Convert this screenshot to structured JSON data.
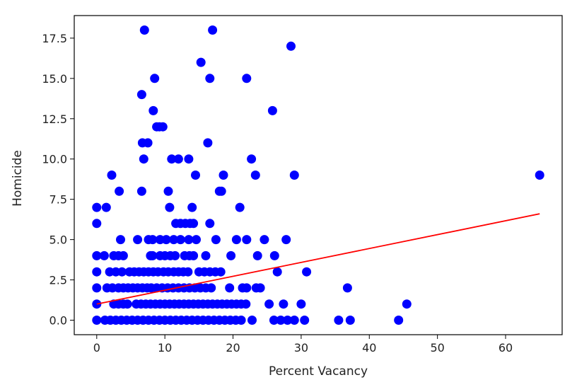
{
  "chart_data": {
    "type": "scatter",
    "xlabel": "Percent Vacancy",
    "ylabel": "Homicide",
    "xlim": [
      -3.3,
      68.3
    ],
    "ylim": [
      -0.9,
      18.9
    ],
    "xticks": [
      0,
      10,
      20,
      30,
      40,
      50,
      60
    ],
    "xtick_labels": [
      "0",
      "10",
      "20",
      "30",
      "40",
      "50",
      "60"
    ],
    "yticks": [
      0.0,
      2.5,
      5.0,
      7.5,
      10.0,
      12.5,
      15.0,
      17.5
    ],
    "ytick_labels": [
      "0.0",
      "2.5",
      "5.0",
      "7.5",
      "10.0",
      "12.5",
      "15.0",
      "17.5"
    ],
    "grid": false,
    "point_color": "#0000ff",
    "line_color": "#ff0000",
    "points": [
      [
        7,
        18
      ],
      [
        17,
        18
      ],
      [
        28.5,
        17
      ],
      [
        15.3,
        16
      ],
      [
        8.5,
        15
      ],
      [
        16.6,
        15
      ],
      [
        22,
        15
      ],
      [
        6.6,
        14
      ],
      [
        8.3,
        13
      ],
      [
        25.8,
        13
      ],
      [
        8.8,
        12
      ],
      [
        9.2,
        12
      ],
      [
        9.7,
        12
      ],
      [
        6.7,
        11
      ],
      [
        7.5,
        11
      ],
      [
        16.3,
        11
      ],
      [
        6.9,
        10
      ],
      [
        11,
        10
      ],
      [
        12,
        10
      ],
      [
        13.5,
        10
      ],
      [
        22.7,
        10
      ],
      [
        2.2,
        9
      ],
      [
        14.5,
        9
      ],
      [
        18.6,
        9
      ],
      [
        23.3,
        9
      ],
      [
        29,
        9
      ],
      [
        65,
        9
      ],
      [
        3.3,
        8
      ],
      [
        6.6,
        8
      ],
      [
        10.5,
        8
      ],
      [
        18,
        8
      ],
      [
        18.3,
        8
      ],
      [
        0,
        7
      ],
      [
        1.4,
        7
      ],
      [
        10.7,
        7
      ],
      [
        14,
        7
      ],
      [
        21,
        7
      ],
      [
        0,
        6
      ],
      [
        11.6,
        6
      ],
      [
        12.3,
        6
      ],
      [
        13,
        6
      ],
      [
        13.7,
        6
      ],
      [
        14.2,
        6
      ],
      [
        16.6,
        6
      ],
      [
        3.5,
        5
      ],
      [
        6,
        5
      ],
      [
        7.6,
        5
      ],
      [
        8.2,
        5
      ],
      [
        9.3,
        5
      ],
      [
        10.2,
        5
      ],
      [
        11.3,
        5
      ],
      [
        12.3,
        5
      ],
      [
        13.5,
        5
      ],
      [
        14.6,
        5
      ],
      [
        17.5,
        5
      ],
      [
        20.5,
        5
      ],
      [
        22,
        5
      ],
      [
        24.6,
        5
      ],
      [
        27.8,
        5
      ],
      [
        0,
        4
      ],
      [
        1.1,
        4
      ],
      [
        2.5,
        4
      ],
      [
        3.2,
        4
      ],
      [
        3.9,
        4
      ],
      [
        7.9,
        4
      ],
      [
        8.2,
        4
      ],
      [
        9.3,
        4
      ],
      [
        10,
        4
      ],
      [
        10.8,
        4
      ],
      [
        11.5,
        4
      ],
      [
        12.9,
        4
      ],
      [
        13.6,
        4
      ],
      [
        14.2,
        4
      ],
      [
        16,
        4
      ],
      [
        19.7,
        4
      ],
      [
        23.6,
        4
      ],
      [
        26.1,
        4
      ],
      [
        0,
        3
      ],
      [
        1.9,
        3
      ],
      [
        2.8,
        3
      ],
      [
        3.7,
        3
      ],
      [
        4.8,
        3
      ],
      [
        5.5,
        3
      ],
      [
        6.2,
        3
      ],
      [
        6.9,
        3
      ],
      [
        7.6,
        3
      ],
      [
        8.3,
        3
      ],
      [
        9,
        3
      ],
      [
        9.8,
        3
      ],
      [
        10.5,
        3
      ],
      [
        11.3,
        3
      ],
      [
        12,
        3
      ],
      [
        12.7,
        3
      ],
      [
        13.4,
        3
      ],
      [
        15,
        3
      ],
      [
        15.8,
        3
      ],
      [
        16.6,
        3
      ],
      [
        17.4,
        3
      ],
      [
        18.2,
        3
      ],
      [
        26.5,
        3
      ],
      [
        30.8,
        3
      ],
      [
        0,
        2
      ],
      [
        1.5,
        2
      ],
      [
        2.3,
        2
      ],
      [
        3.2,
        2
      ],
      [
        3.9,
        2
      ],
      [
        4.6,
        2
      ],
      [
        5.3,
        2
      ],
      [
        6,
        2
      ],
      [
        6.7,
        2
      ],
      [
        7.4,
        2
      ],
      [
        8,
        2
      ],
      [
        8.8,
        2
      ],
      [
        9.6,
        2
      ],
      [
        10.4,
        2
      ],
      [
        11.2,
        2
      ],
      [
        12,
        2
      ],
      [
        12.8,
        2
      ],
      [
        13.6,
        2
      ],
      [
        14.4,
        2
      ],
      [
        15.2,
        2
      ],
      [
        16,
        2
      ],
      [
        16.8,
        2
      ],
      [
        19.5,
        2
      ],
      [
        21.4,
        2
      ],
      [
        22,
        2
      ],
      [
        23.4,
        2
      ],
      [
        24,
        2
      ],
      [
        36.8,
        2
      ],
      [
        0,
        1
      ],
      [
        2.5,
        1
      ],
      [
        3.2,
        1
      ],
      [
        3.9,
        1
      ],
      [
        4.5,
        1
      ],
      [
        5.8,
        1
      ],
      [
        6.5,
        1
      ],
      [
        7.2,
        1
      ],
      [
        7.9,
        1
      ],
      [
        8.6,
        1
      ],
      [
        9.3,
        1
      ],
      [
        10,
        1
      ],
      [
        10.7,
        1
      ],
      [
        11.4,
        1
      ],
      [
        12.1,
        1
      ],
      [
        12.8,
        1
      ],
      [
        13.5,
        1
      ],
      [
        14.2,
        1
      ],
      [
        14.9,
        1
      ],
      [
        15.6,
        1
      ],
      [
        16.3,
        1
      ],
      [
        17,
        1
      ],
      [
        17.7,
        1
      ],
      [
        18.4,
        1
      ],
      [
        19.1,
        1
      ],
      [
        19.8,
        1
      ],
      [
        20.5,
        1
      ],
      [
        21.2,
        1
      ],
      [
        21.9,
        1
      ],
      [
        25.3,
        1
      ],
      [
        27.4,
        1
      ],
      [
        30,
        1
      ],
      [
        45.5,
        1
      ],
      [
        0,
        0
      ],
      [
        1.2,
        0
      ],
      [
        2,
        0
      ],
      [
        2.8,
        0
      ],
      [
        3.6,
        0
      ],
      [
        4.4,
        0
      ],
      [
        5.2,
        0
      ],
      [
        6,
        0
      ],
      [
        6.8,
        0
      ],
      [
        7.6,
        0
      ],
      [
        8.4,
        0
      ],
      [
        9.2,
        0
      ],
      [
        10,
        0
      ],
      [
        10.8,
        0
      ],
      [
        11.6,
        0
      ],
      [
        12.4,
        0
      ],
      [
        13.2,
        0
      ],
      [
        14,
        0
      ],
      [
        14.8,
        0
      ],
      [
        15.6,
        0
      ],
      [
        16.4,
        0
      ],
      [
        17.2,
        0
      ],
      [
        18,
        0
      ],
      [
        18.8,
        0
      ],
      [
        19.6,
        0
      ],
      [
        20.4,
        0
      ],
      [
        21.2,
        0
      ],
      [
        22.8,
        0
      ],
      [
        26,
        0
      ],
      [
        27,
        0
      ],
      [
        28,
        0
      ],
      [
        29,
        0
      ],
      [
        30.5,
        0
      ],
      [
        35.5,
        0
      ],
      [
        37.2,
        0
      ],
      [
        44.3,
        0
      ]
    ],
    "fit_line": {
      "x": [
        0,
        65
      ],
      "y": [
        1.0,
        6.6
      ]
    }
  }
}
